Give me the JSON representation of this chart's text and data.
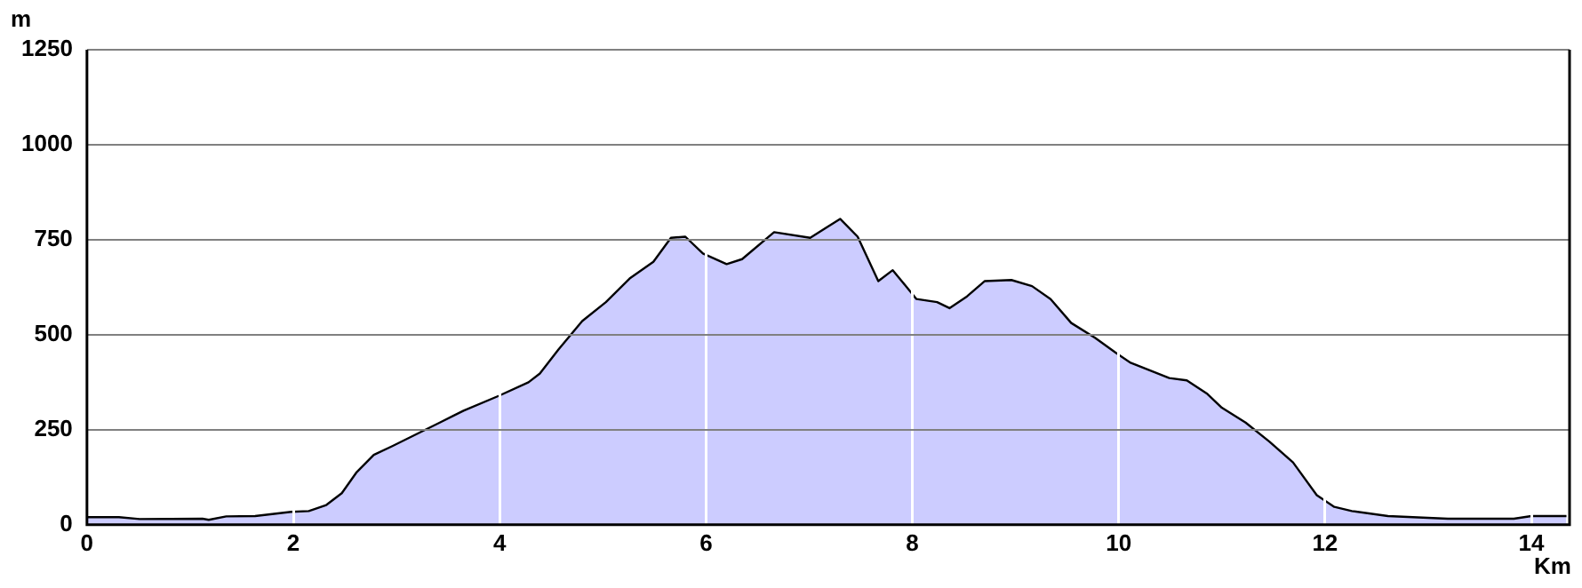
{
  "chart_data": {
    "type": "area",
    "xlabel": "Km",
    "ylabel": "m",
    "x": [
      0,
      0.31,
      0.51,
      1.12,
      1.18,
      1.35,
      1.63,
      1.98,
      2.15,
      2.32,
      2.47,
      2.61,
      2.78,
      2.96,
      3.19,
      3.42,
      3.65,
      3.99,
      4.28,
      4.39,
      4.57,
      4.8,
      5.03,
      5.26,
      5.49,
      5.66,
      5.8,
      5.97,
      6.2,
      6.35,
      6.66,
      7.01,
      7.3,
      7.47,
      7.67,
      7.81,
      8.04,
      8.24,
      8.36,
      8.53,
      8.7,
      8.96,
      9.16,
      9.34,
      9.54,
      9.77,
      9.97,
      10.11,
      10.49,
      10.66,
      10.86,
      11,
      11.23,
      11.46,
      11.69,
      11.92,
      12.09,
      12.26,
      12.61,
      13.19,
      13.83,
      14,
      14.34
    ],
    "series": [
      {
        "color": "#ccccff",
        "values": [
          20,
          20,
          15,
          16,
          13,
          22,
          23,
          34,
          36,
          52,
          83,
          137,
          184,
          207,
          238,
          269,
          300,
          339,
          375,
          398,
          461,
          536,
          586,
          648,
          692,
          755,
          758,
          714,
          686,
          699,
          770,
          755,
          805,
          758,
          641,
          670,
          594,
          586,
          570,
          601,
          641,
          644,
          628,
          594,
          531,
          492,
          453,
          427,
          386,
          380,
          344,
          308,
          269,
          219,
          164,
          78,
          47,
          36,
          23,
          16,
          16,
          23,
          23
        ]
      }
    ],
    "xlim": [
      0,
      14.37
    ],
    "xticks": [
      0,
      2,
      4,
      6,
      8,
      10,
      12,
      14
    ],
    "ylim": [
      0,
      1250
    ],
    "yticks": [
      0,
      250,
      500,
      750,
      1000,
      1250
    ],
    "grid": true,
    "legend": false,
    "marker": "none",
    "line_style": "solid"
  }
}
